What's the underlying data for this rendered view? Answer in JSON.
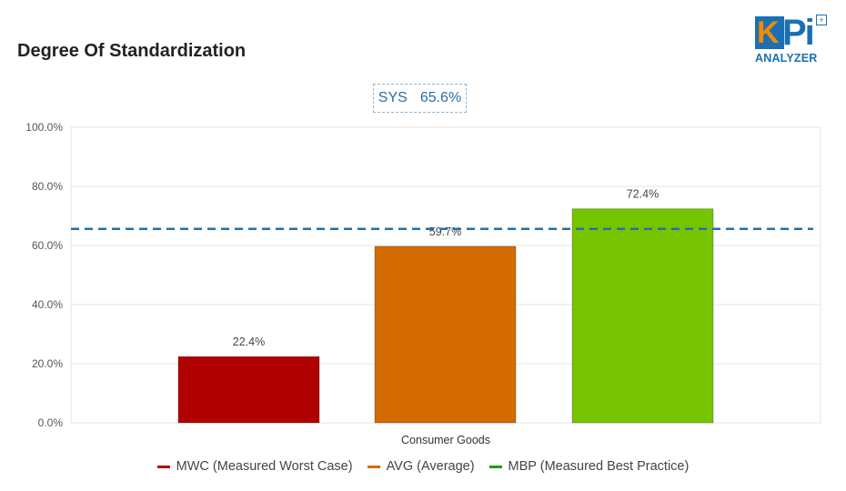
{
  "header": {
    "title": "Degree Of Standardization"
  },
  "logo": {
    "mark_k": "K",
    "mark_pi": "Pi",
    "wordmark": "ANALYZER",
    "accent": "#f28a00",
    "brand": "#1a6fb5"
  },
  "sys": {
    "label": "SYS",
    "value_text": "65.6%",
    "value": 65.6,
    "color": "#2a6ea6"
  },
  "chart_data": {
    "type": "bar",
    "title": "Degree Of Standardization",
    "categories": [
      "Consumer Goods"
    ],
    "series": [
      {
        "name": "MWC (Measured Worst Case)",
        "values": [
          22.4
        ],
        "label": "22.4%",
        "color": "#b10000"
      },
      {
        "name": "AVG (Average)",
        "values": [
          59.7
        ],
        "label": "59.7%",
        "color": "#d46b00"
      },
      {
        "name": "MBP (Measured Best Practice)",
        "values": [
          72.4
        ],
        "label": "72.4%",
        "color": "#76c400"
      }
    ],
    "legend_swatch_colors": [
      "#b10000",
      "#d46b00",
      "#1e9a1e"
    ],
    "reference_line": {
      "label": "SYS",
      "value": 65.6,
      "style": "dashed",
      "color": "#2a6ea6"
    },
    "yticks": [
      "0.0%",
      "20.0%",
      "40.0%",
      "60.0%",
      "80.0%",
      "100.0%"
    ],
    "ylim": [
      0,
      100
    ],
    "xlabel": "",
    "ylabel": "",
    "grid": true,
    "legend_position": "bottom"
  }
}
